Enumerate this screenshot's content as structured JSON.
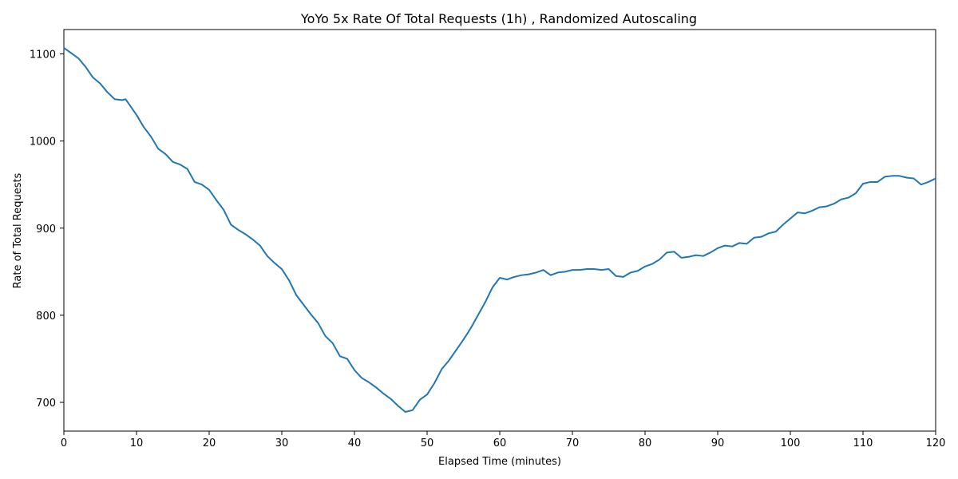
{
  "chart_data": {
    "type": "line",
    "title": "YoYo 5x Rate Of Total Requests (1h) , Randomized Autoscaling",
    "xlabel": "Elapsed Time (minutes)",
    "ylabel": "Rate of Total Requests",
    "xlim": [
      0,
      120
    ],
    "ylim": [
      667,
      1128
    ],
    "xticks": [
      0,
      10,
      20,
      30,
      40,
      50,
      60,
      70,
      80,
      90,
      100,
      110,
      120
    ],
    "yticks": [
      700,
      800,
      900,
      1000,
      1100
    ],
    "grid": false,
    "line_color": "#1f77b4",
    "series": [
      {
        "x": [
          0,
          1,
          2,
          3,
          4,
          5,
          6,
          7,
          8,
          8.5,
          9,
          10,
          11,
          12,
          13,
          14,
          15,
          16,
          17,
          18,
          19,
          20,
          21,
          22,
          23,
          24,
          25,
          26,
          27,
          28,
          29,
          30,
          31,
          32,
          33,
          34,
          35,
          36,
          37,
          38,
          39,
          40,
          41,
          42,
          43,
          44,
          45,
          46,
          47,
          48,
          49,
          50,
          51,
          52,
          53,
          54,
          55,
          56,
          57,
          58,
          59,
          60,
          61,
          62,
          63,
          64,
          65,
          66,
          67,
          68,
          69,
          70,
          71,
          72,
          73,
          74,
          75,
          76,
          77,
          78,
          79,
          80,
          81,
          82,
          83,
          84,
          85,
          86,
          87,
          88,
          89,
          90,
          91,
          92,
          93,
          94,
          95,
          96,
          97,
          98,
          99,
          100,
          101,
          102,
          103,
          104,
          105,
          106,
          107,
          108,
          109,
          110,
          111,
          112,
          113,
          114,
          115,
          116,
          117,
          118,
          119,
          120
        ],
        "y": [
          1107,
          1101,
          1095,
          1085,
          1073,
          1066,
          1056,
          1048,
          1047,
          1048,
          1042,
          1030,
          1016,
          1005,
          991,
          985,
          976,
          973,
          968,
          953,
          950,
          944,
          932,
          921,
          904,
          898,
          893,
          887,
          880,
          868,
          860,
          853,
          840,
          823,
          812,
          801,
          791,
          776,
          768,
          753,
          750,
          737,
          728,
          723,
          717,
          710,
          704,
          696,
          689,
          691,
          703,
          709,
          722,
          738,
          748,
          760,
          772,
          785,
          800,
          815,
          832,
          843,
          841,
          844,
          846,
          847,
          849,
          852,
          846,
          849,
          850,
          852,
          852,
          853,
          853,
          852,
          853,
          845,
          844,
          849,
          851,
          856,
          859,
          864,
          872,
          873,
          866,
          867,
          869,
          868,
          872,
          877,
          880,
          879,
          883,
          882,
          889,
          890,
          894,
          896,
          904,
          911,
          918,
          917,
          920,
          924,
          925,
          928,
          933,
          935,
          940,
          951,
          953,
          953,
          959,
          960,
          960,
          958,
          957,
          950,
          953,
          957
        ]
      }
    ]
  }
}
